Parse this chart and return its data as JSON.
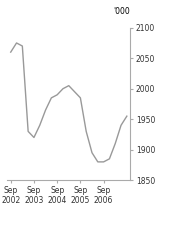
{
  "x_values": [
    0,
    0.25,
    0.5,
    0.75,
    1.0,
    1.25,
    1.5,
    1.75,
    2.0,
    2.25,
    2.5,
    2.75,
    3.0,
    3.25,
    3.5,
    3.75,
    4.0,
    4.25,
    4.5,
    4.75,
    5.0
  ],
  "y_values": [
    2060,
    2075,
    2070,
    1930,
    1920,
    1940,
    1965,
    1985,
    1990,
    2000,
    2005,
    1995,
    1985,
    1930,
    1895,
    1880,
    1880,
    1885,
    1910,
    1940,
    1955
  ],
  "x_ticks": [
    0,
    1,
    2,
    3,
    4
  ],
  "x_tick_labels": [
    "Sep\n2002",
    "Sep\n2003",
    "Sep\n2004",
    "Sep\n2005",
    "Sep\n2006"
  ],
  "ylim": [
    1850,
    2100
  ],
  "yticks": [
    1850,
    1900,
    1950,
    2000,
    2050,
    2100
  ],
  "ylabel_top": "'000",
  "line_color": "#999999",
  "line_width": 1.0,
  "background_color": "#ffffff",
  "tick_label_fontsize": 5.5,
  "ylabel_fontsize": 5.5
}
